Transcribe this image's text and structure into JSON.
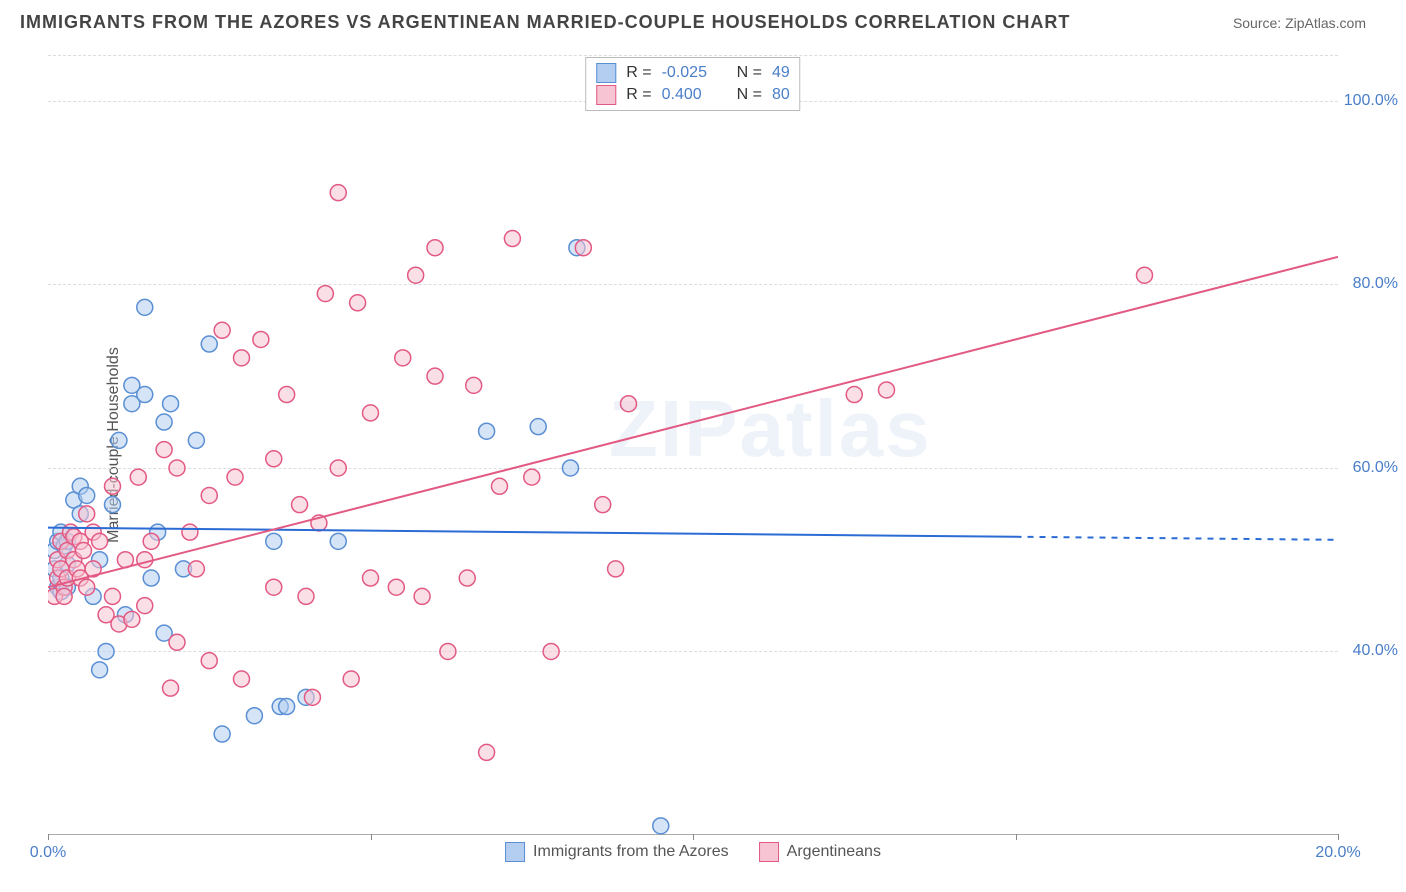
{
  "title": "IMMIGRANTS FROM THE AZORES VS ARGENTINEAN MARRIED-COUPLE HOUSEHOLDS CORRELATION CHART",
  "source": "Source: ZipAtlas.com",
  "watermark": "ZIPatlas",
  "y_axis_title": "Married-couple Households",
  "chart": {
    "type": "scatter",
    "xlim": [
      0,
      20
    ],
    "ylim": [
      20,
      105
    ],
    "x_ticks": [
      0,
      5,
      10,
      15,
      20
    ],
    "x_tick_labels": [
      "0.0%",
      "",
      "",
      "",
      "20.0%"
    ],
    "y_ticks": [
      40,
      60,
      80,
      100
    ],
    "y_tick_labels": [
      "40.0%",
      "60.0%",
      "80.0%",
      "100.0%"
    ],
    "grid_color": "#dddddd",
    "marker_radius": 8,
    "series": [
      {
        "name": "Immigrants from the Azores",
        "fill": "#b3cef0",
        "stroke": "#5a8fd4",
        "fill_opacity": 0.55,
        "r": -0.025,
        "n": 49,
        "trend": {
          "x1": 0,
          "y1": 53.5,
          "x2": 15,
          "y2": 52.5,
          "dash_extend_to": 20,
          "color": "#2a6bd4",
          "width": 2
        },
        "points": [
          [
            0.1,
            49
          ],
          [
            0.1,
            51
          ],
          [
            0.15,
            52
          ],
          [
            0.15,
            47
          ],
          [
            0.2,
            48
          ],
          [
            0.2,
            53
          ],
          [
            0.2,
            46.5
          ],
          [
            0.25,
            51.5
          ],
          [
            0.3,
            49.5
          ],
          [
            0.3,
            52
          ],
          [
            0.3,
            47
          ],
          [
            0.4,
            56.5
          ],
          [
            0.5,
            55
          ],
          [
            0.5,
            58
          ],
          [
            0.6,
            57
          ],
          [
            0.7,
            46
          ],
          [
            0.8,
            50
          ],
          [
            0.8,
            38
          ],
          [
            0.9,
            40
          ],
          [
            1.0,
            56
          ],
          [
            1.1,
            63
          ],
          [
            1.2,
            44
          ],
          [
            1.3,
            67
          ],
          [
            1.3,
            69
          ],
          [
            1.5,
            77.5
          ],
          [
            1.5,
            68
          ],
          [
            1.6,
            48
          ],
          [
            1.7,
            53
          ],
          [
            1.8,
            42
          ],
          [
            1.8,
            65
          ],
          [
            1.9,
            67
          ],
          [
            2.1,
            49
          ],
          [
            2.3,
            63
          ],
          [
            2.5,
            73.5
          ],
          [
            2.7,
            31
          ],
          [
            3.2,
            33
          ],
          [
            3.5,
            52
          ],
          [
            3.6,
            34
          ],
          [
            3.7,
            34
          ],
          [
            4.0,
            35
          ],
          [
            4.5,
            52
          ],
          [
            6.8,
            64
          ],
          [
            7.6,
            64.5
          ],
          [
            8.1,
            60
          ],
          [
            8.2,
            84
          ],
          [
            9.5,
            21
          ]
        ]
      },
      {
        "name": "Argentineans",
        "fill": "#f7c4d3",
        "stroke": "#e25a83",
        "fill_opacity": 0.55,
        "r": 0.4,
        "n": 80,
        "trend": {
          "x1": 0,
          "y1": 47,
          "x2": 20,
          "y2": 83,
          "color": "#e25a83",
          "width": 2
        },
        "points": [
          [
            0.1,
            46
          ],
          [
            0.15,
            48
          ],
          [
            0.15,
            50
          ],
          [
            0.2,
            49
          ],
          [
            0.2,
            52
          ],
          [
            0.25,
            47
          ],
          [
            0.25,
            46
          ],
          [
            0.3,
            51
          ],
          [
            0.3,
            48
          ],
          [
            0.35,
            53
          ],
          [
            0.4,
            50
          ],
          [
            0.4,
            52.5
          ],
          [
            0.45,
            49
          ],
          [
            0.5,
            52
          ],
          [
            0.5,
            48
          ],
          [
            0.55,
            51
          ],
          [
            0.6,
            55
          ],
          [
            0.6,
            47
          ],
          [
            0.7,
            49
          ],
          [
            0.7,
            53
          ],
          [
            0.8,
            52
          ],
          [
            0.9,
            44
          ],
          [
            1.0,
            46
          ],
          [
            1.0,
            58
          ],
          [
            1.1,
            43
          ],
          [
            1.2,
            50
          ],
          [
            1.3,
            43.5
          ],
          [
            1.4,
            59
          ],
          [
            1.5,
            50
          ],
          [
            1.5,
            45
          ],
          [
            1.6,
            52
          ],
          [
            1.8,
            62
          ],
          [
            1.9,
            36
          ],
          [
            2.0,
            41
          ],
          [
            2.0,
            60
          ],
          [
            2.2,
            53
          ],
          [
            2.3,
            49
          ],
          [
            2.5,
            57
          ],
          [
            2.5,
            39
          ],
          [
            2.7,
            75
          ],
          [
            2.9,
            59
          ],
          [
            3.0,
            37
          ],
          [
            3.0,
            72
          ],
          [
            3.3,
            74
          ],
          [
            3.5,
            61
          ],
          [
            3.5,
            47
          ],
          [
            3.7,
            68
          ],
          [
            3.9,
            56
          ],
          [
            4.0,
            46
          ],
          [
            4.1,
            35
          ],
          [
            4.2,
            54
          ],
          [
            4.3,
            79
          ],
          [
            4.5,
            60
          ],
          [
            4.5,
            90
          ],
          [
            4.7,
            37
          ],
          [
            4.8,
            78
          ],
          [
            5.0,
            48
          ],
          [
            5.0,
            66
          ],
          [
            5.4,
            47
          ],
          [
            5.5,
            72
          ],
          [
            5.7,
            81
          ],
          [
            5.8,
            46
          ],
          [
            6.0,
            84
          ],
          [
            6.0,
            70
          ],
          [
            6.2,
            40
          ],
          [
            6.5,
            48
          ],
          [
            6.6,
            69
          ],
          [
            6.8,
            29
          ],
          [
            7.0,
            58
          ],
          [
            7.2,
            85
          ],
          [
            7.5,
            59
          ],
          [
            7.8,
            40
          ],
          [
            8.3,
            84
          ],
          [
            8.6,
            56
          ],
          [
            8.8,
            49
          ],
          [
            9.0,
            67
          ],
          [
            12.5,
            68
          ],
          [
            13.0,
            68.5
          ],
          [
            17.0,
            81
          ]
        ]
      }
    ]
  },
  "top_legend": {
    "rows": [
      {
        "swatch_fill": "#b3cef0",
        "swatch_stroke": "#5a8fd4",
        "r_label": "R =",
        "r_value": "-0.025",
        "n_label": "N =",
        "n_value": "49"
      },
      {
        "swatch_fill": "#f7c4d3",
        "swatch_stroke": "#e25a83",
        "r_label": "R =",
        "r_value": " 0.400",
        "n_label": "N =",
        "n_value": "80"
      }
    ]
  },
  "bottom_legend": {
    "items": [
      {
        "swatch_fill": "#b3cef0",
        "swatch_stroke": "#5a8fd4",
        "label": "Immigrants from the Azores"
      },
      {
        "swatch_fill": "#f7c4d3",
        "swatch_stroke": "#e25a83",
        "label": "Argentineans"
      }
    ]
  }
}
